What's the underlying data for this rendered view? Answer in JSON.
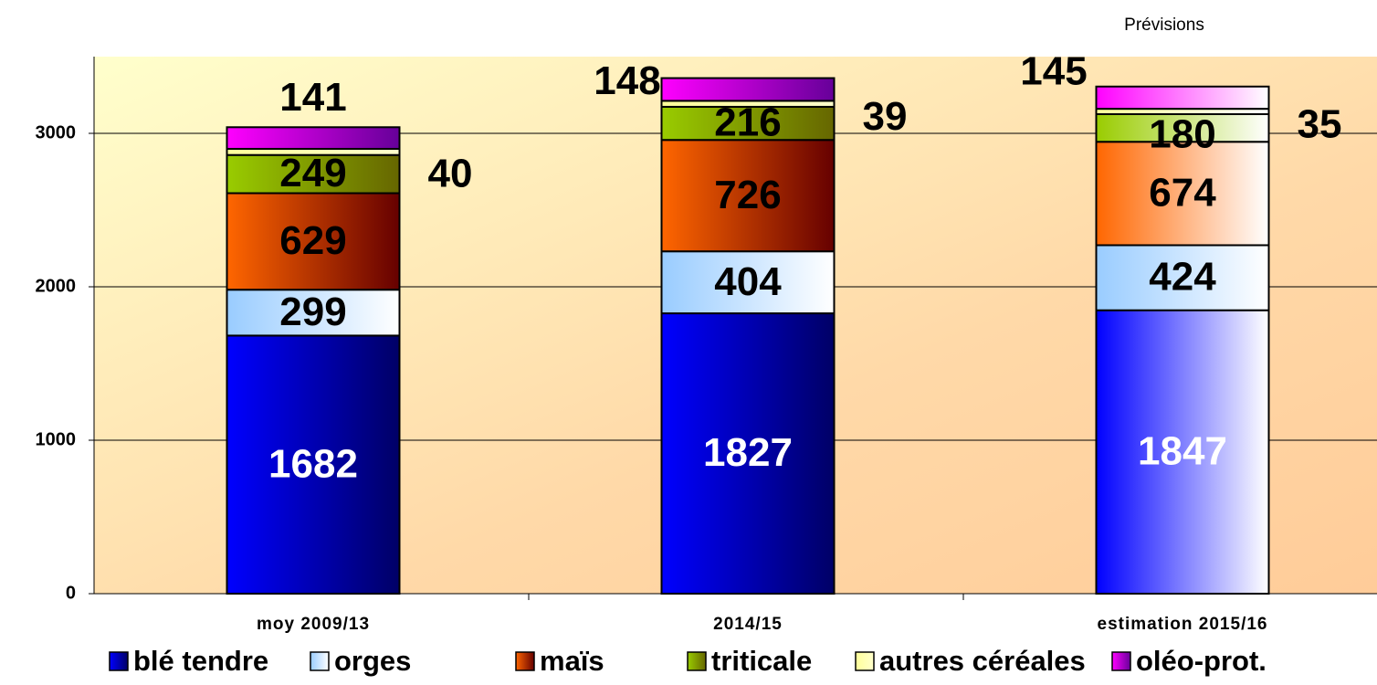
{
  "chart_data": {
    "type": "stacked_bar",
    "annotation": "Prévisions",
    "categories": [
      "moy 2009/13",
      "2014/15",
      "estimation 2015/16"
    ],
    "series": [
      {
        "name": "blé tendre",
        "color": "#0000ff",
        "values": [
          1682,
          1827,
          1847
        ]
      },
      {
        "name": "orges",
        "color": "#99ccff",
        "values": [
          299,
          404,
          424
        ]
      },
      {
        "name": "maïs",
        "color": "#ff6600",
        "values": [
          629,
          726,
          674
        ]
      },
      {
        "name": "triticale",
        "color": "#99cc00",
        "values": [
          249,
          216,
          180
        ]
      },
      {
        "name": "autres céréales",
        "color": "#ffff99",
        "values": [
          40,
          39,
          35
        ]
      },
      {
        "name": "oléo-prot.",
        "color": "#ff00ff",
        "values": [
          141,
          148,
          145
        ]
      }
    ],
    "ylim": [
      0,
      3500
    ],
    "yticks": [
      0,
      1000,
      2000,
      3000
    ],
    "grid": true,
    "legend": "bottom"
  }
}
